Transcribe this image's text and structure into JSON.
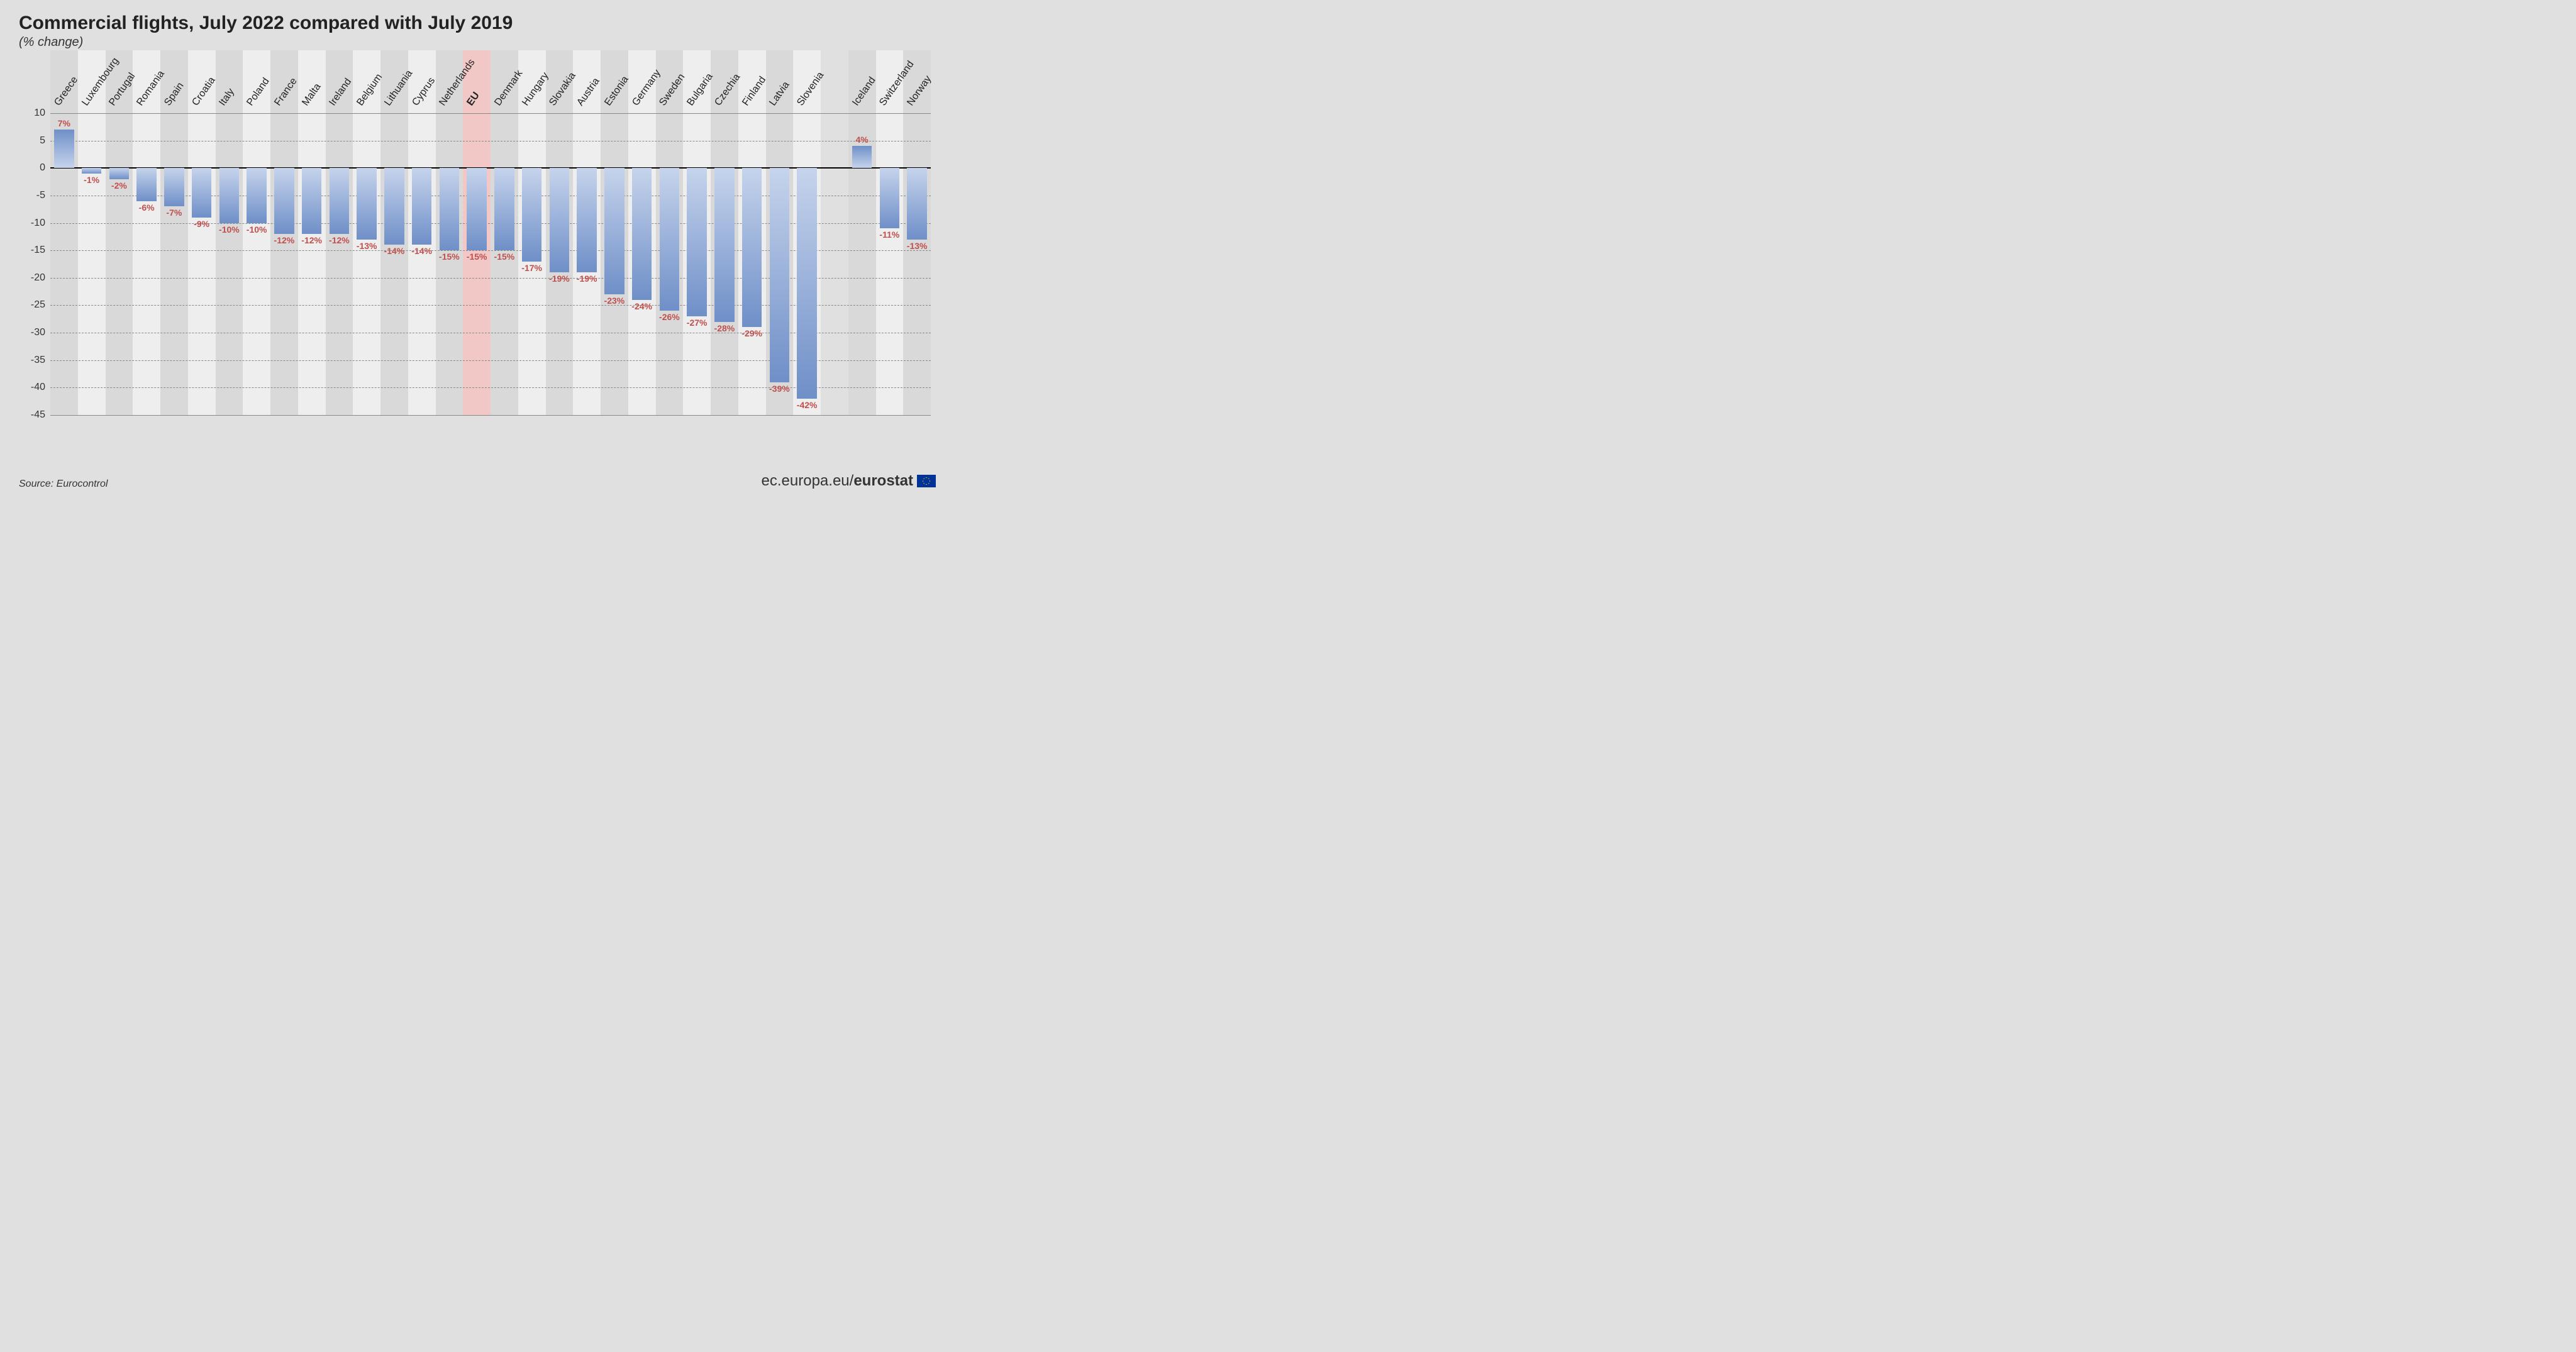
{
  "title": "Commercial flights, July 2022 compared with July 2019",
  "subtitle": "(% change)",
  "source": "Source: Eurocontrol",
  "brand_prefix": "ec.europa.eu/",
  "brand_strong": "eurostat",
  "chart": {
    "type": "bar",
    "ylim": [
      -45,
      10
    ],
    "ytick_step": 5,
    "yticks": [
      10,
      5,
      0,
      -5,
      -10,
      -15,
      -20,
      -25,
      -30,
      -35,
      -40,
      -45
    ],
    "tick_fontsize": 16,
    "title_fontsize": 30,
    "subtitle_fontsize": 20,
    "xlabel_fontsize": 16,
    "value_label_fontsize": 14,
    "value_label_color": "#c0504d",
    "grid_color": "#888888",
    "grid_style": "dashed",
    "zero_line_color": "#000000",
    "stripe_colors": [
      "#d9d9d9",
      "#eeeeee"
    ],
    "eu_stripe_color": "#f2c8c6",
    "bar_gradient_top": "#c6d4ec",
    "bar_gradient_bottom": "#6f8fc8",
    "bar_width_ratio": 0.72,
    "background_color": "#e0e0e0",
    "groups": [
      {
        "gap_before": 0,
        "items": [
          {
            "label": "Greece",
            "value": 7,
            "display": "7%"
          },
          {
            "label": "Luxembourg",
            "value": -1,
            "display": "-1%"
          },
          {
            "label": "Portugal",
            "value": -2,
            "display": "-2%"
          },
          {
            "label": "Romania",
            "value": -6,
            "display": "-6%"
          },
          {
            "label": "Spain",
            "value": -7,
            "display": "-7%"
          },
          {
            "label": "Croatia",
            "value": -9,
            "display": "-9%"
          },
          {
            "label": "Italy",
            "value": -10,
            "display": "-10%"
          },
          {
            "label": "Poland",
            "value": -10,
            "display": "-10%"
          },
          {
            "label": "France",
            "value": -12,
            "display": "-12%"
          },
          {
            "label": "Malta",
            "value": -12,
            "display": "-12%"
          },
          {
            "label": "Ireland",
            "value": -12,
            "display": "-12%"
          },
          {
            "label": "Belgium",
            "value": -13,
            "display": "-13%"
          },
          {
            "label": "Lithuania",
            "value": -14,
            "display": "-14%"
          },
          {
            "label": "Cyprus",
            "value": -14,
            "display": "-14%"
          },
          {
            "label": "Netherlands",
            "value": -15,
            "display": "-15%"
          },
          {
            "label": "EU",
            "value": -15,
            "display": "-15%",
            "highlight": true,
            "bold_label": true
          },
          {
            "label": "Denmark",
            "value": -15,
            "display": "-15%"
          },
          {
            "label": "Hungary",
            "value": -17,
            "display": "-17%"
          },
          {
            "label": "Slovakia",
            "value": -19,
            "display": "-19%"
          },
          {
            "label": "Austria",
            "value": -19,
            "display": "-19%"
          },
          {
            "label": "Estonia",
            "value": -23,
            "display": "-23%"
          },
          {
            "label": "Germany",
            "value": -24,
            "display": "-24%"
          },
          {
            "label": "Sweden",
            "value": -26,
            "display": "-26%"
          },
          {
            "label": "Bulgaria",
            "value": -27,
            "display": "-27%"
          },
          {
            "label": "Czechia",
            "value": -28,
            "display": "-28%"
          },
          {
            "label": "Finland",
            "value": -29,
            "display": "-29%"
          },
          {
            "label": "Latvia",
            "value": -39,
            "display": "-39%"
          },
          {
            "label": "Slovenia",
            "value": -42,
            "display": "-42%"
          }
        ]
      },
      {
        "gap_before": 1,
        "items": [
          {
            "label": "Iceland",
            "value": 4,
            "display": "4%"
          },
          {
            "label": "Switzerland",
            "value": -11,
            "display": "-11%"
          },
          {
            "label": "Norway",
            "value": -13,
            "display": "-13%"
          }
        ]
      }
    ]
  }
}
